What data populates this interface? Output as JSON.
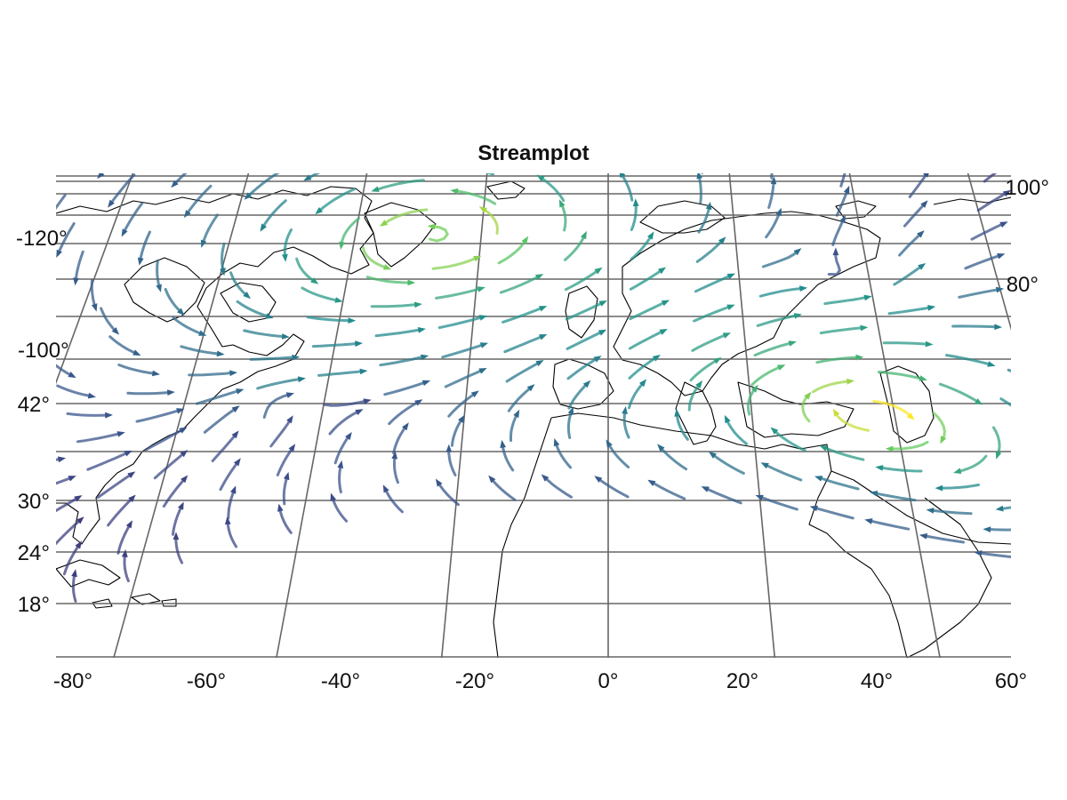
{
  "chart_data": {
    "type": "streamplot",
    "title": "Streamplot",
    "projection": "conic",
    "x_ticks": [
      "-80°",
      "-60°",
      "-40°",
      "-20°",
      "0°",
      "20°",
      "40°",
      "60°"
    ],
    "x_tick_values": [
      -80,
      -60,
      -40,
      -20,
      0,
      20,
      40,
      60
    ],
    "y_ticks": [
      "18°",
      "24°",
      "30°",
      "42°"
    ],
    "y_tick_values": [
      18,
      24,
      30,
      42
    ],
    "outer_ticks": [
      "-120°",
      "-100°",
      "100°",
      "80°"
    ],
    "lon_range": [
      -80,
      60
    ],
    "lat_range": [
      12,
      75
    ],
    "colormap": [
      "#440154",
      "#3b528b",
      "#21908d",
      "#5dc963",
      "#fde725"
    ],
    "grid": true,
    "vortices": [
      {
        "lon": -24,
        "lat": 57,
        "r": 6,
        "dir": 1
      },
      {
        "lon": 16,
        "lat": 44,
        "r": 7,
        "dir": -1
      },
      {
        "lon": -45,
        "lat": 18,
        "r": 8,
        "dir": 1
      },
      {
        "lon": -12,
        "lat": 40,
        "r": 20,
        "dir": -1
      },
      {
        "lon": 20,
        "lat": 60,
        "r": 18,
        "dir": 1
      }
    ],
    "field_extent": {
      "lon": [
        -72,
        52
      ],
      "lat": [
        15,
        73
      ]
    }
  }
}
